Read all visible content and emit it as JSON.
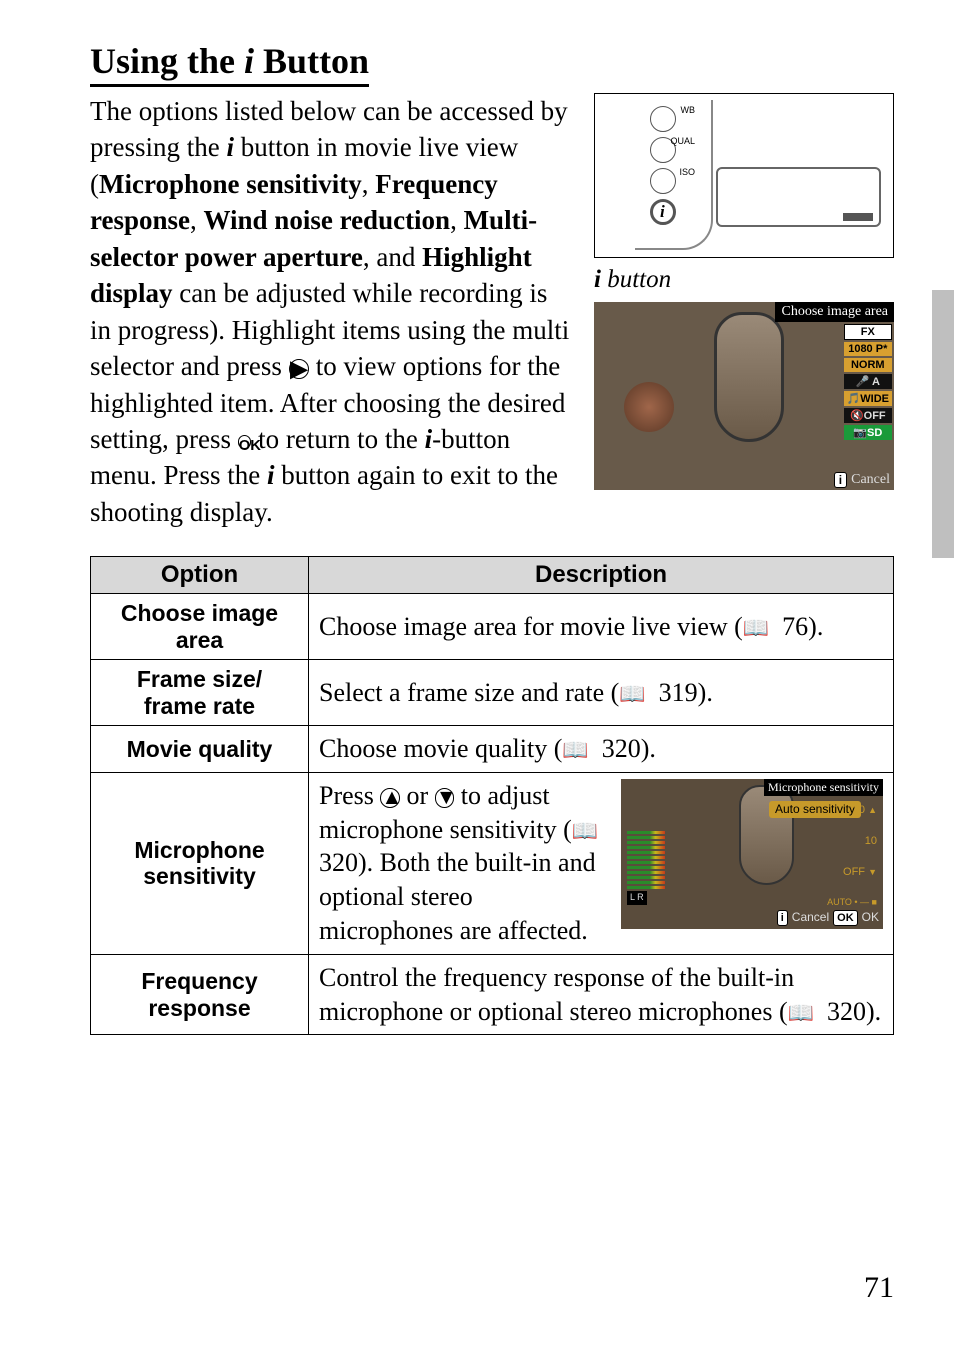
{
  "heading_pre": "Using the ",
  "heading_sym": "i",
  "heading_post": " Button",
  "intro_1": "The options listed below can be accessed by pressing the ",
  "intro_sym1": "i",
  "intro_2": " button in movie live view (",
  "bold_1": "Microphone sensitivity",
  "sep_1": ", ",
  "bold_2": "Frequency response",
  "sep_2": ", ",
  "bold_3": "Wind noise reduction",
  "sep_3": ", ",
  "bold_4": "Multi-selector power aperture",
  "sep_4": ", and ",
  "bold_5": "Highlight display",
  "intro_3": " can be adjusted while recording is in progress). Highlight items using the multi selector and press ",
  "circ_1": "▶",
  "intro_4": " to view options for the highlighted item. After choosing the desired setting, press ",
  "circ_2": "OK",
  "intro_5": " to return to the ",
  "intro_sym2": "i",
  "intro_6": "-button menu. Press the ",
  "intro_sym3": "i",
  "intro_7": " button again to exit to the shooting display.",
  "cam_btn_labels": {
    "wb": "WB",
    "qual": "QUAL",
    "iso": "ISO"
  },
  "cam_caption_sym": "i",
  "cam_caption": " button",
  "lcd1": {
    "top": "Choose image area",
    "badges": [
      "FX",
      "1080 P*",
      "NORM",
      "🎤 A",
      "🎵WIDE",
      "🔇OFF",
      "📷SD"
    ],
    "bottom_i": "i",
    "bottom_cancel": "Cancel"
  },
  "table": {
    "h1": "Option",
    "h2": "Description",
    "rows": [
      {
        "opt": "Choose image area",
        "desc_a": "Choose image area for movie live view (",
        "ref": "76",
        "desc_b": ")."
      },
      {
        "opt": "Frame size/\nframe rate",
        "desc_a": "Select a frame size and rate (",
        "ref": "319",
        "desc_b": ")."
      },
      {
        "opt": "Movie quality",
        "desc_a": "Choose movie quality (",
        "ref": "320",
        "desc_b": ")."
      },
      {
        "opt": "Microphone\nsensitivity",
        "desc_a": "Press ",
        "up": "▲",
        "mid": " or ",
        "dn": "▼",
        "desc_b": " to adjust microphone sensitivity (",
        "ref": "320",
        "desc_c": "). Both the built-in and optional stereo microphones are affected.",
        "lcd": {
          "top": "Microphone sensitivity",
          "pill": "Auto sensitivity",
          "scale": [
            "20",
            "10",
            "OFF",
            "AUTO"
          ],
          "lr": "L R",
          "cancel": "Cancel",
          "ok": "OK",
          "ok2": "OK"
        }
      },
      {
        "opt": "Frequency\nresponse",
        "desc_a": "Control the frequency response of the built-in microphone or optional stereo microphones (",
        "ref": "320",
        "desc_b": ")."
      }
    ]
  },
  "pagenum": "71"
}
